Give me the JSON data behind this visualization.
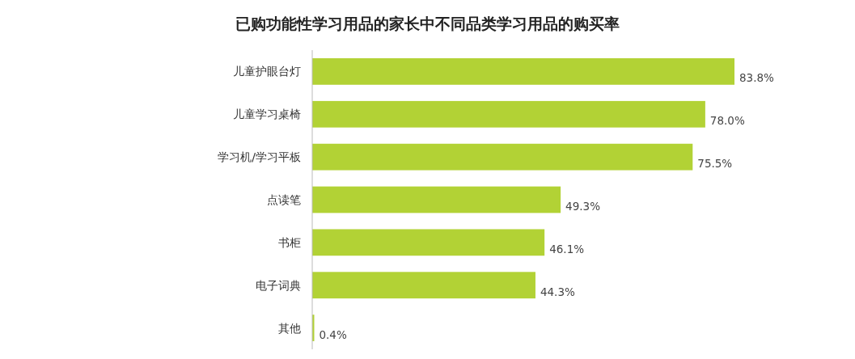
{
  "chart_data": {
    "type": "bar",
    "orientation": "horizontal",
    "title": "已购功能性学习用品的家长中不同品类学习用品的购买率",
    "categories": [
      "儿童护眼台灯",
      "儿童学习桌椅",
      "学习机/学习平板",
      "点读笔",
      "书柜",
      "电子词典",
      "其他"
    ],
    "values": [
      83.8,
      78.0,
      75.5,
      49.3,
      46.1,
      44.3,
      0.4
    ],
    "value_labels": [
      "83.8%",
      "78.0%",
      "75.5%",
      "49.3%",
      "46.1%",
      "44.3%",
      "0.4%"
    ],
    "color": "#b2d235"
  }
}
